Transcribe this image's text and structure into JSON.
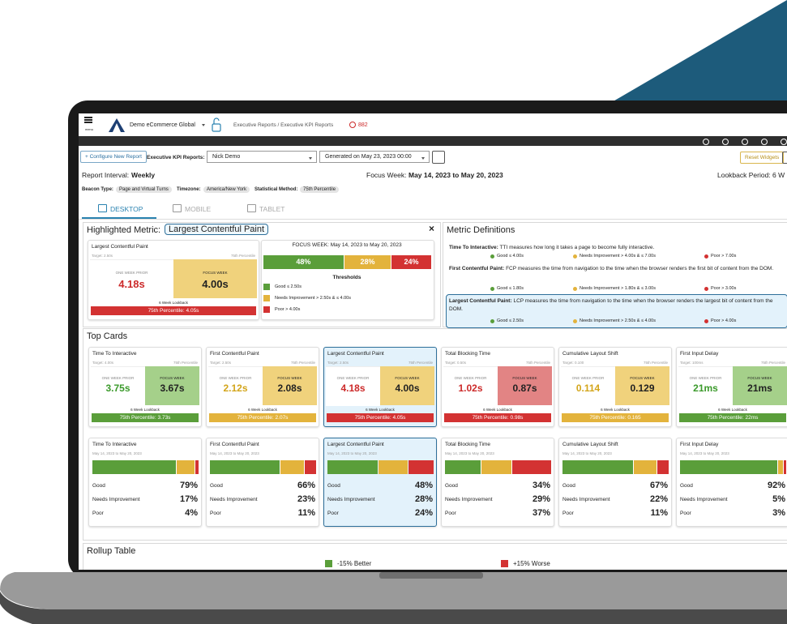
{
  "header": {
    "menu": "menu",
    "org": "Demo eCommerce Global",
    "breadcrumb": "Executive Reports / Executive KPI Reports",
    "alerts": "882"
  },
  "controls": {
    "configure": "+ Configure New Report",
    "reports_label": "Executive KPI Reports:",
    "report": "Nick Demo",
    "generated": "Generated on May 23, 2023 00:00",
    "reset": "Reset Widgets"
  },
  "info": {
    "interval_label": "Report Interval:",
    "interval": "Weekly",
    "focus_label": "Focus Week:",
    "focus": "May 14, 2023 to May 20, 2023",
    "lookback": "Lookback Period: 6 W",
    "beacon_label": "Beacon Type:",
    "beacon": "Page and Virtual Turns",
    "tz_label": "Timezone:",
    "tz": "America/New York",
    "method_label": "Statistical Method:",
    "method": "75th Percentile"
  },
  "tabs": [
    "DESKTOP",
    "MOBILE",
    "TABLET"
  ],
  "labels": {
    "prior": "ONE WEEK PRIOR",
    "focus": "FOCUS WEEK",
    "lookback": "6 Week Lookback",
    "percentile": "75th Percentile",
    "good": "Good",
    "ni": "Needs Improvement",
    "poor": "Poor",
    "close": "×"
  },
  "highlighted": {
    "title": "Highlighted Metric:",
    "metric": "Largest Contentful Paint",
    "focus_title": "FOCUS WEEK: May 14, 2023 to May 20, 2023",
    "values": [
      48,
      28,
      24
    ],
    "value_labels": [
      "48%",
      "28%",
      "24%"
    ],
    "thresholds_title": "Thresholds",
    "thresholds": [
      "Good ≤ 2.50s",
      "Needs Improvement > 2.50s & ≤ 4.00s",
      "Poor > 4.00s"
    ]
  },
  "definitions": {
    "title": "Metric Definitions",
    "items": [
      {
        "name": "Time To Interactive:",
        "text": "TTI measures how long it takes a page to become fully interactive.",
        "thresholds": [
          "Good ≤ 4.00s",
          "Needs Improvement > 4.00s & ≤ 7.00s",
          "Poor > 7.00s"
        ]
      },
      {
        "name": "First Contentful Paint:",
        "text": "FCP measures the time from navigation to the time when the browser renders the first bit of content from the DOM.",
        "thresholds": [
          "Good ≤ 1.80s",
          "Needs Improvement > 1.80s & ≤ 3.00s",
          "Poor > 3.00s"
        ]
      },
      {
        "name": "Largest Contentful Paint:",
        "text": "LCP measures the time from navigation to the time when the browser renders the largest bit of content from the DOM.",
        "thresholds": [
          "Good ≤ 2.50s",
          "Needs Improvement > 2.50s & ≤ 4.00s",
          "Poor > 4.00s"
        ]
      }
    ]
  },
  "top_cards": {
    "title": "Top Cards",
    "date": "May 14, 2023 to May 20, 2023",
    "cards": [
      {
        "name": "Time To Interactive",
        "target": "Target: 4.00s",
        "prior": "3.75s",
        "focus": "3.67s",
        "percentile": "75th Percentile: 3.73s",
        "status": [
          "green",
          "green",
          "green"
        ],
        "values": [
          79,
          17,
          4
        ],
        "value_labels": [
          "79%",
          "17%",
          "4%"
        ]
      },
      {
        "name": "First Contentful Paint",
        "target": "Target: 2.50s",
        "prior": "2.12s",
        "focus": "2.08s",
        "percentile": "75th Percentile: 2.07s",
        "status": [
          "yellow",
          "yellow",
          "yellow"
        ],
        "values": [
          66,
          23,
          11
        ],
        "value_labels": [
          "66%",
          "23%",
          "11%"
        ]
      },
      {
        "name": "Largest Contentful Paint",
        "target": "Target: 2.50s",
        "prior": "4.18s",
        "focus": "4.00s",
        "percentile": "75th Percentile: 4.05s",
        "status": [
          "red",
          "yellow",
          "red"
        ],
        "values": [
          48,
          28,
          24
        ],
        "value_labels": [
          "48%",
          "28%",
          "24%"
        ],
        "highlight": true
      },
      {
        "name": "Total Blocking Time",
        "target": "Target: 0.50s",
        "prior": "1.02s",
        "focus": "0.87s",
        "percentile": "75th Percentile: 0.98s",
        "status": [
          "red",
          "red",
          "red"
        ],
        "values": [
          34,
          29,
          37
        ],
        "value_labels": [
          "34%",
          "29%",
          "37%"
        ]
      },
      {
        "name": "Cumulative Layout Shift",
        "target": "Target: 0.100",
        "prior": "0.114",
        "focus": "0.129",
        "percentile": "75th Percentile: 0.165",
        "status": [
          "yellow",
          "yellow",
          "yellow"
        ],
        "values": [
          67,
          22,
          11
        ],
        "value_labels": [
          "67%",
          "22%",
          "11%"
        ]
      },
      {
        "name": "First Input Delay",
        "target": "Target: 100ms",
        "prior": "21ms",
        "focus": "21ms",
        "percentile": "75th Percentile: 22ms",
        "status": [
          "green",
          "green",
          "green"
        ],
        "values": [
          92,
          5,
          3
        ],
        "value_labels": [
          "92%",
          "5%",
          "3%"
        ]
      }
    ]
  },
  "rollup": {
    "title": "Rollup Table",
    "better": "-15% Better",
    "worse": "+15% Worse"
  }
}
